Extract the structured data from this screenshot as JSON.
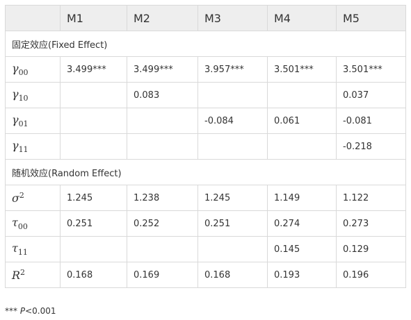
{
  "table": {
    "columns": [
      "",
      "M1",
      "M2",
      "M3",
      "M4",
      "M5"
    ],
    "sections": [
      {
        "title": "固定效应(Fixed Effect)",
        "rows": [
          {
            "symbol": "γ",
            "sub": "00",
            "sup": "",
            "values": [
              "3.499***",
              "3.499***",
              "3.957***",
              "3.501***",
              "3.501***"
            ]
          },
          {
            "symbol": "γ",
            "sub": "10",
            "sup": "",
            "values": [
              "",
              "0.083",
              "",
              "",
              "0.037"
            ]
          },
          {
            "symbol": "γ",
            "sub": "01",
            "sup": "",
            "values": [
              "",
              "",
              "-0.084",
              "0.061",
              "-0.081"
            ]
          },
          {
            "symbol": "γ",
            "sub": "11",
            "sup": "",
            "values": [
              "",
              "",
              "",
              "",
              "-0.218"
            ]
          }
        ]
      },
      {
        "title": "随机效应(Random Effect)",
        "rows": [
          {
            "symbol": "σ",
            "sub": "",
            "sup": "2",
            "values": [
              "1.245",
              "1.238",
              "1.245",
              "1.149",
              "1.122"
            ]
          },
          {
            "symbol": "τ",
            "sub": "00",
            "sup": "",
            "values": [
              "0.251",
              "0.252",
              "0.251",
              "0.274",
              "0.273"
            ]
          },
          {
            "symbol": "τ",
            "sub": "11",
            "sup": "",
            "values": [
              "",
              "",
              "",
              "0.145",
              "0.129"
            ]
          },
          {
            "symbol": "R",
            "sub": "",
            "sup": "2",
            "values": [
              "0.168",
              "0.169",
              "0.168",
              "0.193",
              "0.196"
            ]
          }
        ]
      }
    ]
  },
  "footnote": {
    "stars": "***",
    "p": "P",
    "rest": "<0.001"
  }
}
